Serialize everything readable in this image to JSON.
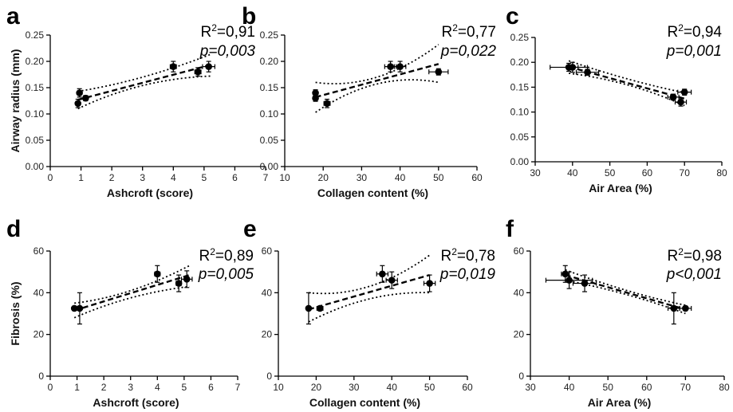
{
  "chart_data": [
    {
      "panel": "a",
      "type": "scatter",
      "xlabel": "Ashcroft (score)",
      "ylabel": "Airway radius (mm)",
      "xlim": [
        0,
        7
      ],
      "ylim": [
        0,
        0.25
      ],
      "xticks": [
        "0",
        "1",
        "2",
        "3",
        "4",
        "5",
        "6",
        "7"
      ],
      "yticks": [
        "0.00",
        "0.05",
        "0.10",
        "0.15",
        "0.20",
        "0.25"
      ],
      "r2": "R2=0,91",
      "p": "p=0,003",
      "points": [
        {
          "x": 0.9,
          "y": 0.12,
          "xerr": 0.05,
          "yerr": 0.008
        },
        {
          "x": 0.95,
          "y": 0.14,
          "xerr": 0.05,
          "yerr": 0.008
        },
        {
          "x": 1.15,
          "y": 0.13,
          "xerr": 0.05,
          "yerr": 0.005
        },
        {
          "x": 4.0,
          "y": 0.19,
          "xerr": 0.1,
          "yerr": 0.01
        },
        {
          "x": 4.8,
          "y": 0.18,
          "xerr": 0.1,
          "yerr": 0.008
        },
        {
          "x": 5.15,
          "y": 0.19,
          "xerr": 0.2,
          "yerr": 0.01
        }
      ],
      "fit": [
        [
          0.9,
          0.127
        ],
        [
          5.2,
          0.193
        ]
      ],
      "ci_upper": [
        [
          0.9,
          0.143
        ],
        [
          3.0,
          0.17
        ],
        [
          5.2,
          0.213
        ]
      ],
      "ci_lower": [
        [
          0.9,
          0.11
        ],
        [
          3.0,
          0.154
        ],
        [
          5.2,
          0.172
        ]
      ]
    },
    {
      "panel": "b",
      "type": "scatter",
      "xlabel": "Collagen content (%)",
      "ylabel": "",
      "xlim": [
        10,
        60
      ],
      "ylim": [
        0,
        0.25
      ],
      "xticks": [
        "10",
        "20",
        "30",
        "40",
        "50",
        "60"
      ],
      "yticks": [
        "0.00",
        "0.05",
        "0.10",
        "0.15",
        "0.20",
        "0.25"
      ],
      "r2": "R2=0,77",
      "p": "p=0,022",
      "points": [
        {
          "x": 18,
          "y": 0.13,
          "xerr": 0.4,
          "yerr": 0.006
        },
        {
          "x": 18,
          "y": 0.14,
          "xerr": 0.4,
          "yerr": 0.006
        },
        {
          "x": 21,
          "y": 0.12,
          "xerr": 0.8,
          "yerr": 0.008
        },
        {
          "x": 37.5,
          "y": 0.19,
          "xerr": 1.5,
          "yerr": 0.01
        },
        {
          "x": 40,
          "y": 0.19,
          "xerr": 1.5,
          "yerr": 0.01
        },
        {
          "x": 50,
          "y": 0.18,
          "xerr": 2.5,
          "yerr": 0.006
        }
      ],
      "fit": [
        [
          18,
          0.132
        ],
        [
          50,
          0.195
        ]
      ],
      "ci_upper": [
        [
          18,
          0.16
        ],
        [
          34,
          0.17
        ],
        [
          50,
          0.232
        ]
      ],
      "ci_lower": [
        [
          18,
          0.103
        ],
        [
          34,
          0.157
        ],
        [
          50,
          0.16
        ]
      ]
    },
    {
      "panel": "c",
      "type": "scatter",
      "xlabel": "Air Area (%)",
      "ylabel": "",
      "xlim": [
        30,
        80
      ],
      "ylim": [
        0,
        0.25
      ],
      "xticks": [
        "30",
        "40",
        "50",
        "60",
        "70",
        "80"
      ],
      "yticks": [
        "0.00",
        "0.05",
        "0.10",
        "0.15",
        "0.20",
        "0.25"
      ],
      "r2": "R2=0,94",
      "p": "p=0,001",
      "points": [
        {
          "x": 39,
          "y": 0.19,
          "xerr": 5,
          "yerr": 0.008
        },
        {
          "x": 40,
          "y": 0.19,
          "xerr": 1.5,
          "yerr": 0.01
        },
        {
          "x": 44,
          "y": 0.18,
          "xerr": 3,
          "yerr": 0.006
        },
        {
          "x": 67,
          "y": 0.13,
          "xerr": 1.5,
          "yerr": 0.006
        },
        {
          "x": 69,
          "y": 0.12,
          "xerr": 1.5,
          "yerr": 0.008
        },
        {
          "x": 70,
          "y": 0.14,
          "xerr": 1.8,
          "yerr": 0.006
        }
      ],
      "fit": [
        [
          39,
          0.191
        ],
        [
          70,
          0.127
        ]
      ],
      "ci_upper": [
        [
          39,
          0.203
        ],
        [
          55,
          0.166
        ],
        [
          70,
          0.139
        ]
      ],
      "ci_lower": [
        [
          39,
          0.178
        ],
        [
          55,
          0.154
        ],
        [
          70,
          0.113
        ]
      ]
    },
    {
      "panel": "d",
      "type": "scatter",
      "xlabel": "Ashcroft (score)",
      "ylabel": "Fibrosis (%)",
      "xlim": [
        0,
        7
      ],
      "ylim": [
        0,
        60
      ],
      "xticks": [
        "0",
        "1",
        "2",
        "3",
        "4",
        "5",
        "6",
        "7"
      ],
      "yticks": [
        "0",
        "20",
        "40",
        "60"
      ],
      "r2": "R2=0,89",
      "p": "p=0,005",
      "points": [
        {
          "x": 0.9,
          "y": 32.5,
          "xerr": 0.05,
          "yerr": 1
        },
        {
          "x": 1.1,
          "y": 32.5,
          "xerr": 0.05,
          "yerr": 7.5
        },
        {
          "x": 4.0,
          "y": 49,
          "xerr": 0.1,
          "yerr": 4
        },
        {
          "x": 4.8,
          "y": 44.5,
          "xerr": 0.1,
          "yerr": 4
        },
        {
          "x": 5.1,
          "y": 46.5,
          "xerr": 0.2,
          "yerr": 4
        }
      ],
      "fit": [
        [
          0.9,
          31.5
        ],
        [
          5.2,
          48.5
        ]
      ],
      "ci_upper": [
        [
          0.9,
          35
        ],
        [
          3.0,
          41
        ],
        [
          5.2,
          53
        ]
      ],
      "ci_lower": [
        [
          0.9,
          28
        ],
        [
          3.0,
          37.5
        ],
        [
          5.2,
          43
        ]
      ]
    },
    {
      "panel": "e",
      "type": "scatter",
      "xlabel": "Collagen content (%)",
      "ylabel": "",
      "xlim": [
        10,
        60
      ],
      "ylim": [
        0,
        60
      ],
      "xticks": [
        "10",
        "20",
        "30",
        "40",
        "50",
        "60"
      ],
      "yticks": [
        "0",
        "20",
        "40",
        "60"
      ],
      "r2": "R2=0,78",
      "p": "p=0,019",
      "points": [
        {
          "x": 18,
          "y": 32.5,
          "xerr": 0.4,
          "yerr": 7.5
        },
        {
          "x": 21,
          "y": 32.5,
          "xerr": 0.8,
          "yerr": 1
        },
        {
          "x": 37.5,
          "y": 49,
          "xerr": 1.5,
          "yerr": 4
        },
        {
          "x": 40,
          "y": 46,
          "xerr": 1.5,
          "yerr": 4
        },
        {
          "x": 50,
          "y": 44.5,
          "xerr": 1.5,
          "yerr": 4
        }
      ],
      "fit": [
        [
          18,
          32
        ],
        [
          50,
          48.5
        ]
      ],
      "ci_upper": [
        [
          18,
          40
        ],
        [
          34,
          43
        ],
        [
          50,
          58
        ]
      ],
      "ci_lower": [
        [
          18,
          26
        ],
        [
          34,
          37
        ],
        [
          50,
          40
        ]
      ]
    },
    {
      "panel": "f",
      "type": "scatter",
      "xlabel": "Air Area (%)",
      "ylabel": "",
      "xlim": [
        30,
        80
      ],
      "ylim": [
        0,
        60
      ],
      "xticks": [
        "30",
        "40",
        "50",
        "60",
        "70",
        "80"
      ],
      "yticks": [
        "0",
        "20",
        "40",
        "60"
      ],
      "r2": "R2=0,98",
      "p": "p<0,001",
      "points": [
        {
          "x": 39,
          "y": 49,
          "xerr": 1,
          "yerr": 4
        },
        {
          "x": 40,
          "y": 46,
          "xerr": 6,
          "yerr": 4
        },
        {
          "x": 44,
          "y": 44.5,
          "xerr": 3,
          "yerr": 4
        },
        {
          "x": 67,
          "y": 32.5,
          "xerr": 1.5,
          "yerr": 7.5
        },
        {
          "x": 70,
          "y": 32.5,
          "xerr": 1.5,
          "yerr": 1
        }
      ],
      "fit": [
        [
          39,
          48.5
        ],
        [
          70,
          32
        ]
      ],
      "ci_upper": [
        [
          39,
          51
        ],
        [
          55,
          41
        ],
        [
          70,
          34
        ]
      ],
      "ci_lower": [
        [
          39,
          46
        ],
        [
          55,
          39
        ],
        [
          70,
          30
        ]
      ]
    }
  ]
}
